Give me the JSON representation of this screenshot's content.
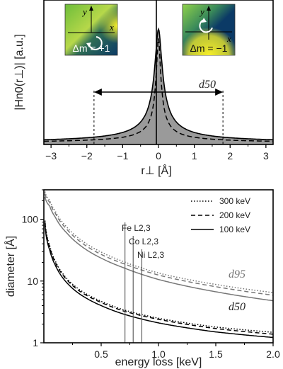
{
  "chart_data": [
    {
      "type": "area",
      "xlabel": "r⊥ [Å]",
      "ylabel": "|Hn0(r⊥)| [a.u.]",
      "xlim": [
        -3.2,
        3.2
      ],
      "x_ticks": [
        "−3",
        "−2",
        "−1",
        "0",
        "1",
        "2",
        "3"
      ],
      "x_tick_values": [
        -3,
        -2,
        -1,
        0,
        1,
        2,
        3
      ],
      "d50_label": "d50",
      "d50_interval": [
        -1.8,
        1.8
      ],
      "series": [
        {
          "style": "solid",
          "profile": "lorentzian-like, filled gray",
          "fwhm_scale": 0.42
        },
        {
          "style": "dashed",
          "profile": "narrower, reduced tail",
          "fwhm_scale": 0.25
        }
      ],
      "insets": [
        {
          "label": "Δm = +1",
          "rotation": "counter-clockwise",
          "axes": [
            "y",
            "x"
          ],
          "colors": {
            "top": "#9ccf3a",
            "left": "#6fbf3d",
            "bottom_right": "#0b3a66",
            "corner": "#f3ec2a"
          }
        },
        {
          "label": "Δm = −1",
          "rotation": "clockwise",
          "axes": [
            "y",
            "x"
          ],
          "colors": {
            "top_left": "#8fd14a",
            "top_right": "#0b3a66",
            "bottom": "#f3ec2a"
          }
        }
      ]
    },
    {
      "type": "line",
      "xlabel": "energy loss [keV]",
      "ylabel": "diameter [Å]",
      "xlim": [
        0.0,
        2.0
      ],
      "ylim": [
        1,
        300
      ],
      "yscale": "log",
      "x_ticks": [
        "0.5",
        "1.0",
        "1.5",
        "2.0"
      ],
      "x_tick_values": [
        0.5,
        1.0,
        1.5,
        2.0
      ],
      "y_ticks": [
        "1",
        "10",
        "100"
      ],
      "y_tick_values": [
        1,
        10,
        100
      ],
      "legend": {
        "placement": "top-right",
        "entries": [
          {
            "label": "300 keV",
            "style": "dotted"
          },
          {
            "label": "200 keV",
            "style": "dashed"
          },
          {
            "label": "100 keV",
            "style": "solid"
          }
        ]
      },
      "edges": [
        {
          "label": "Fe L2,3",
          "x": 0.708
        },
        {
          "label": "Co L2,3",
          "x": 0.779
        },
        {
          "label": "Ni L2,3",
          "x": 0.855
        }
      ],
      "group_labels": {
        "d95": "d95",
        "d50": "d50"
      },
      "series": [
        {
          "name": "300 keV",
          "group": "d95",
          "style": "dotted",
          "x": [
            0.01,
            0.05,
            0.1,
            0.2,
            0.3,
            0.5,
            0.7,
            1.0,
            1.5,
            2.0
          ],
          "y": [
            280,
            205,
            135,
            75,
            50,
            29.5,
            20.5,
            13.5,
            8.8,
            6.5
          ]
        },
        {
          "name": "200 keV",
          "group": "d95",
          "style": "dashed",
          "x": [
            0.01,
            0.05,
            0.1,
            0.2,
            0.3,
            0.5,
            0.7,
            1.0,
            1.5,
            2.0
          ],
          "y": [
            260,
            190,
            125,
            69,
            46,
            27,
            19,
            12.5,
            8.1,
            5.9
          ]
        },
        {
          "name": "100 keV",
          "group": "d95",
          "style": "solid",
          "x": [
            0.01,
            0.05,
            0.1,
            0.2,
            0.3,
            0.5,
            0.7,
            1.0,
            1.5,
            2.0
          ],
          "y": [
            230,
            165,
            108,
            60,
            40,
            23.5,
            16.3,
            10.6,
            6.7,
            4.8
          ]
        },
        {
          "name": "300 keV",
          "group": "d50",
          "style": "dotted",
          "x": [
            0.01,
            0.05,
            0.1,
            0.2,
            0.3,
            0.5,
            0.7,
            1.0,
            1.5,
            2.0
          ],
          "y": [
            95,
            38,
            21,
            11,
            7.5,
            4.7,
            3.4,
            2.5,
            1.8,
            1.48
          ]
        },
        {
          "name": "200 keV",
          "group": "d50",
          "style": "dashed",
          "x": [
            0.01,
            0.05,
            0.1,
            0.2,
            0.3,
            0.5,
            0.7,
            1.0,
            1.5,
            2.0
          ],
          "y": [
            90,
            36,
            20,
            10.5,
            7.1,
            4.5,
            3.25,
            2.4,
            1.7,
            1.38
          ]
        },
        {
          "name": "100 keV",
          "group": "d50",
          "style": "solid",
          "x": [
            0.01,
            0.05,
            0.1,
            0.2,
            0.3,
            0.5,
            0.7,
            1.0,
            1.5,
            2.0
          ],
          "y": [
            82,
            32,
            18,
            9.4,
            6.4,
            4.0,
            2.9,
            2.1,
            1.5,
            1.22
          ]
        }
      ]
    }
  ]
}
